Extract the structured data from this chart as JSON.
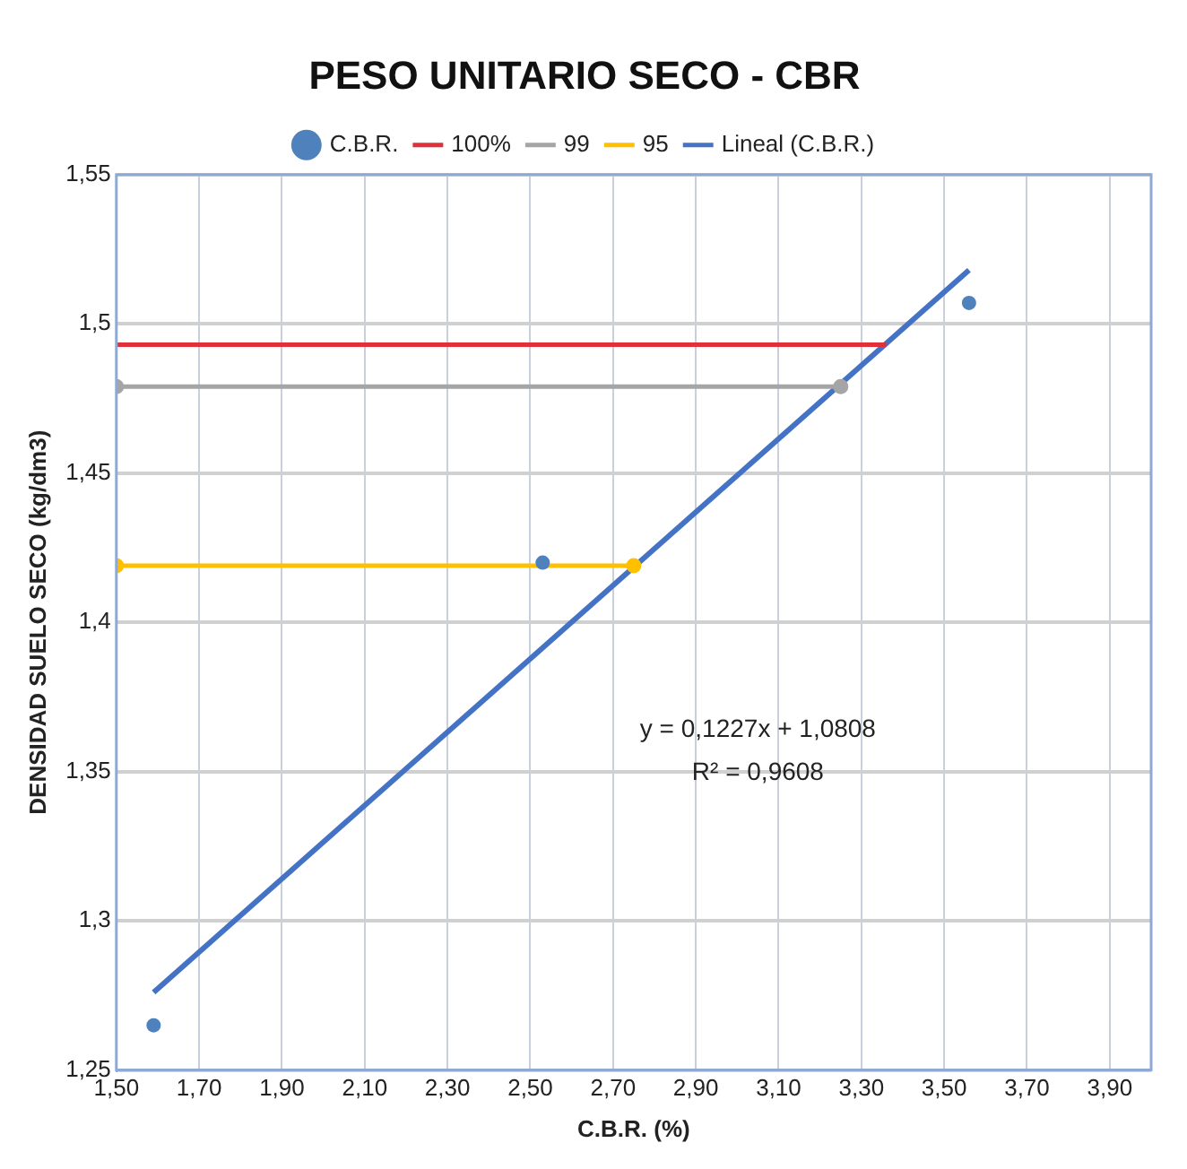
{
  "chart_data": {
    "type": "scatter",
    "title": "PESO UNITARIO SECO - CBR",
    "xlabel": "C.B.R. (%)",
    "ylabel": "DENSIDAD SUELO SECO (kg/dm3)",
    "xlim": [
      1.5,
      4.0
    ],
    "ylim": [
      1.25,
      1.55
    ],
    "xticks": [
      {
        "value": 1.5,
        "label": "1,50"
      },
      {
        "value": 1.7,
        "label": "1,70"
      },
      {
        "value": 1.9,
        "label": "1,90"
      },
      {
        "value": 2.1,
        "label": "2,10"
      },
      {
        "value": 2.3,
        "label": "2,30"
      },
      {
        "value": 2.5,
        "label": "2,50"
      },
      {
        "value": 2.7,
        "label": "2,70"
      },
      {
        "value": 2.9,
        "label": "2,90"
      },
      {
        "value": 3.1,
        "label": "3,10"
      },
      {
        "value": 3.3,
        "label": "3,30"
      },
      {
        "value": 3.5,
        "label": "3,50"
      },
      {
        "value": 3.7,
        "label": "3,70"
      },
      {
        "value": 3.9,
        "label": "3,90"
      }
    ],
    "yticks": [
      {
        "value": 1.25,
        "label": "1,25"
      },
      {
        "value": 1.3,
        "label": "1,3"
      },
      {
        "value": 1.35,
        "label": "1,35"
      },
      {
        "value": 1.4,
        "label": "1,4"
      },
      {
        "value": 1.45,
        "label": "1,45"
      },
      {
        "value": 1.5,
        "label": "1,5"
      },
      {
        "value": 1.55,
        "label": "1,55"
      }
    ],
    "grid": true,
    "legend": "top",
    "series": [
      {
        "name": "C.B.R.",
        "type": "scatter",
        "color": "#4f81bd",
        "marker": "circle",
        "x": [
          1.59,
          2.53,
          3.56
        ],
        "values": [
          1.265,
          1.42,
          1.507
        ]
      },
      {
        "name": "100%",
        "type": "line",
        "color": "#e0303a",
        "marker": "none",
        "x": [
          1.5,
          3.36
        ],
        "values": [
          1.493,
          1.493
        ]
      },
      {
        "name": "99",
        "type": "line",
        "color": "#a5a5a5",
        "marker": "circle",
        "x": [
          1.5,
          3.25
        ],
        "values": [
          1.479,
          1.479
        ]
      },
      {
        "name": "95",
        "type": "line",
        "color": "#ffc000",
        "marker": "circle",
        "x": [
          1.5,
          2.75
        ],
        "values": [
          1.419,
          1.419
        ]
      },
      {
        "name": "Lineal (C.B.R.)",
        "type": "line",
        "color": "#4472c4",
        "marker": "none",
        "x": [
          1.59,
          3.56
        ],
        "values": [
          1.276,
          1.518
        ]
      }
    ],
    "annotations": [
      "y = 0,1227x + 1,0808",
      "R² = 0,9608"
    ]
  }
}
